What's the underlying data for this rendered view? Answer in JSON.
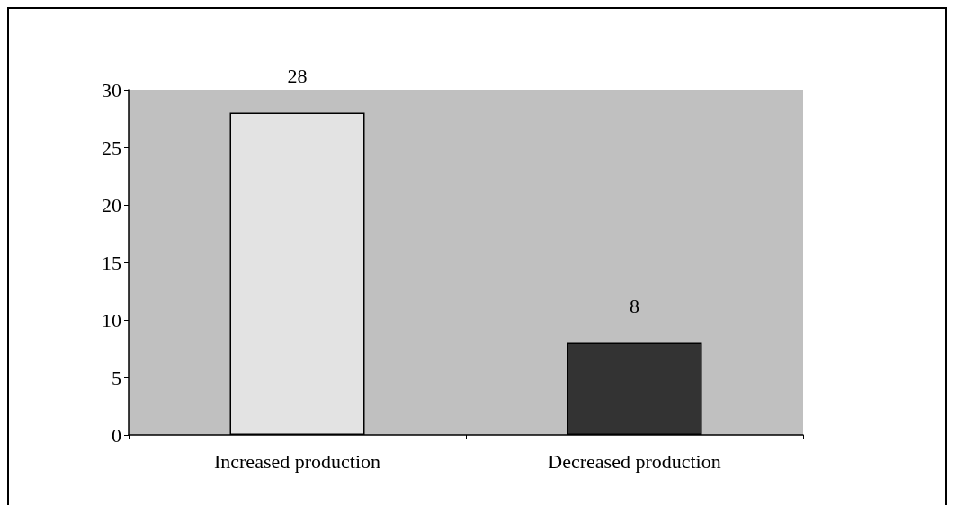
{
  "chart_data": {
    "type": "bar",
    "categories": [
      "Increased production",
      "Decreased production"
    ],
    "values": [
      28,
      8
    ],
    "colors": [
      "#e3e3e3",
      "#333333"
    ],
    "ylim": [
      0,
      30
    ],
    "yticks": [
      0,
      5,
      10,
      15,
      20,
      25,
      30
    ],
    "data_labels": true
  }
}
